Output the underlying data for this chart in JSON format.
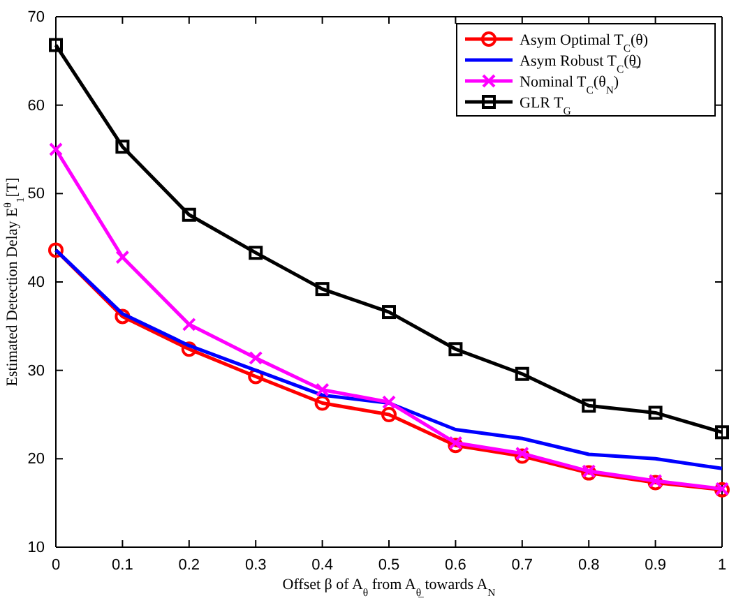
{
  "chart_data": {
    "type": "line",
    "xlabel": "Offset β of A$_{θ}$ from A$_{θ̲}$ towards A$_{N}$",
    "ylabel": "Estimated Detection Delay E$^{θ}$$_{1}$[T]",
    "x": [
      0,
      0.1,
      0.2,
      0.3,
      0.4,
      0.5,
      0.6,
      0.7,
      0.8,
      0.9,
      1
    ],
    "xlim": [
      0,
      1
    ],
    "xticks": [
      0,
      0.1,
      0.2,
      0.3,
      0.4,
      0.5,
      0.6,
      0.7,
      0.8,
      0.9,
      1
    ],
    "ylim": [
      10,
      70
    ],
    "yticks": [
      10,
      20,
      30,
      40,
      50,
      60,
      70
    ],
    "legend": "top right",
    "line_style": "solid",
    "series": [
      {
        "name": "Asym Optimal T$_{C}$(θ)",
        "color": "#ff0000",
        "marker": "circle",
        "values": [
          43.6,
          36.1,
          32.4,
          29.3,
          26.3,
          25.0,
          21.5,
          20.3,
          18.4,
          17.3,
          16.5
        ]
      },
      {
        "name": "Asym Robust T$_{C}$(θ̲)",
        "color": "#0000ff",
        "marker": "none",
        "values": [
          43.6,
          36.4,
          32.8,
          30.0,
          27.2,
          26.3,
          23.3,
          22.3,
          20.5,
          20.0,
          18.9
        ]
      },
      {
        "name": "Nominal T$_{C}$(θ$_{N}$)",
        "color": "#ff00ff",
        "marker": "cross",
        "values": [
          55.0,
          42.8,
          35.2,
          31.4,
          27.8,
          26.4,
          21.8,
          20.6,
          18.6,
          17.5,
          16.6
        ]
      },
      {
        "name": "GLR T$_{G}$",
        "color": "#000000",
        "marker": "square",
        "values": [
          66.8,
          55.3,
          47.6,
          43.3,
          39.2,
          36.6,
          32.4,
          29.6,
          26.0,
          25.2,
          23.0
        ]
      }
    ]
  }
}
